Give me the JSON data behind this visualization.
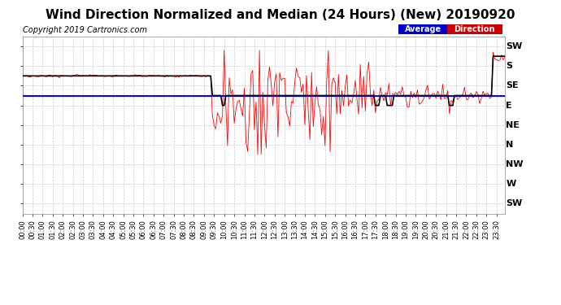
{
  "title": "Wind Direction Normalized and Median (24 Hours) (New) 20190920",
  "copyright": "Copyright 2019 Cartronics.com",
  "ytick_labels": [
    "SW",
    "S",
    "SE",
    "E",
    "NE",
    "N",
    "NW",
    "W",
    "SW"
  ],
  "ytick_values": [
    0,
    1,
    2,
    3,
    4,
    5,
    6,
    7,
    8
  ],
  "legend_average_color": "#0000ff",
  "legend_direction_color": "#ff0000",
  "legend_average_bg": "#0000cc",
  "legend_direction_bg": "#cc0000",
  "median_color": "#000000",
  "average_color": "#0000ff",
  "direction_color": "#ff0000",
  "background_color": "#ffffff",
  "grid_color": "#aaaaaa",
  "title_fontsize": 11,
  "copyright_fontsize": 7,
  "tick_fontsize": 6,
  "ytick_fontsize": 8
}
